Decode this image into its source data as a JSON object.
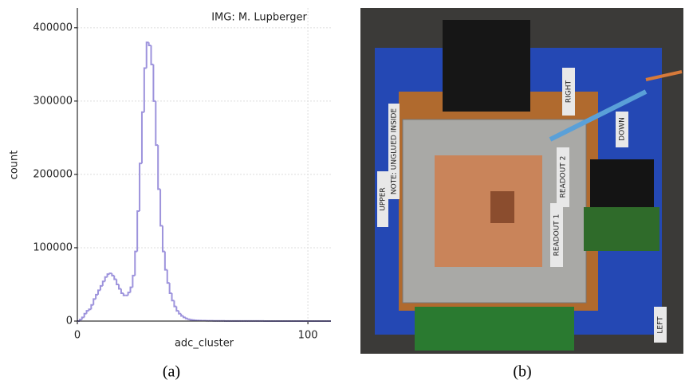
{
  "chart_data": {
    "type": "histogram",
    "x_label": "adc_cluster",
    "y_label": "count",
    "annotation": "IMG: M. Lupberger",
    "color": "#9d93dc",
    "grid": true,
    "xlim": [
      0,
      110
    ],
    "xticks": [
      0,
      100
    ],
    "ylim": [
      0,
      427000
    ],
    "yticks": [
      0,
      100000,
      200000,
      300000,
      400000
    ],
    "bins": [
      0,
      1,
      2,
      3,
      4,
      5,
      6,
      7,
      8,
      9,
      10,
      11,
      12,
      13,
      14,
      15,
      16,
      17,
      18,
      19,
      20,
      21,
      22,
      23,
      24,
      25,
      26,
      27,
      28,
      29,
      30,
      31,
      32,
      33,
      34,
      35,
      36,
      37,
      38,
      39,
      40,
      41,
      42,
      43,
      44,
      45,
      46,
      47,
      48,
      49,
      50,
      51,
      52,
      53,
      54,
      55,
      56,
      57,
      58,
      59,
      60,
      61,
      62,
      63,
      64,
      65,
      66,
      67,
      68,
      69,
      70,
      71,
      72,
      73,
      74,
      75,
      76,
      77,
      78,
      79,
      80,
      81,
      82,
      83,
      84,
      85,
      86,
      87,
      88,
      89,
      90,
      91,
      92,
      93,
      94,
      95,
      96,
      97,
      98,
      99,
      100,
      101,
      102,
      103,
      104,
      105,
      106,
      107,
      108,
      109,
      110
    ],
    "values": [
      0,
      2000,
      5000,
      10000,
      14000,
      16000,
      22000,
      30000,
      36000,
      42000,
      48000,
      54000,
      60000,
      64000,
      65000,
      62000,
      57000,
      50000,
      44000,
      38000,
      35000,
      35000,
      39000,
      46000,
      62000,
      95000,
      150000,
      215000,
      285000,
      345000,
      380000,
      376000,
      350000,
      300000,
      240000,
      180000,
      130000,
      95000,
      70000,
      52000,
      38000,
      28000,
      20000,
      14000,
      10000,
      7000,
      5000,
      3500,
      2500,
      1800,
      1300,
      1000,
      800,
      700,
      600,
      500,
      450,
      400,
      350,
      300,
      280,
      260,
      240,
      220,
      200,
      190,
      180,
      170,
      160,
      150,
      140,
      130,
      120,
      110,
      100,
      95,
      90,
      85,
      80,
      75,
      70,
      65,
      60,
      55,
      50,
      48,
      46,
      44,
      42,
      40,
      38,
      36,
      34,
      32,
      30,
      28,
      26,
      24,
      22,
      20,
      19,
      18,
      17,
      16,
      15,
      14,
      13,
      12,
      11,
      10
    ]
  },
  "captions": [
    "(a)",
    "(b)"
  ],
  "photo_labels": [
    "RIGHT",
    "READOUT 2",
    "READOUT 1",
    "UPPER",
    "NOTE: UNGLUED INSIDE",
    "DOWN",
    "LEFT"
  ]
}
